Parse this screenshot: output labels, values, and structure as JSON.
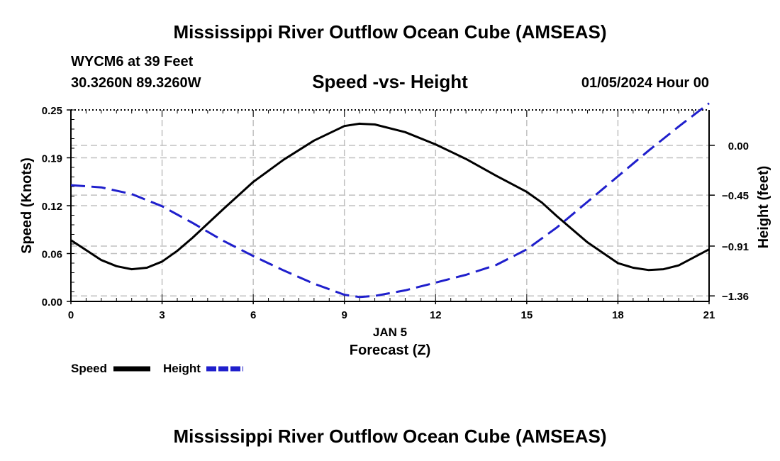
{
  "page": {
    "title_top": "Mississippi River Outflow Ocean Cube (AMSEAS)",
    "title_bottom": "Mississippi River Outflow Ocean Cube (AMSEAS)",
    "station_line": "WYCM6 at 39 Feet",
    "coords": "30.3260N  89.3260W",
    "date_label": "01/05/2024 Hour 00"
  },
  "chart_data": {
    "type": "line",
    "title": "Speed -vs- Height",
    "xlabel": "Forecast (Z)",
    "x_sublabel": "JAN 5",
    "ylabel": "Speed (Knots)",
    "ylabel_right": "Height (feet)",
    "xlim": [
      0,
      21
    ],
    "ylim": [
      0,
      0.25
    ],
    "ylim_right": [
      -1.41,
      0.32
    ],
    "x_ticks": [
      0,
      3,
      6,
      9,
      12,
      15,
      18,
      21
    ],
    "x_tick_labels": [
      "0",
      "3",
      "6",
      "9",
      "12",
      "15",
      "18",
      "21"
    ],
    "y_ticks": [
      0.0,
      0.0625,
      0.125,
      0.1875,
      0.25
    ],
    "y_tick_labels": [
      "0.00",
      "0.06",
      "0.12",
      "0.19",
      "0.25"
    ],
    "y_right_ticks": [
      0.0,
      -0.45,
      -0.91,
      -1.36
    ],
    "y_right_tick_labels": [
      "0.00",
      "−0.45",
      "−0.91",
      "−1.36"
    ],
    "grid": true,
    "legend": [
      "Speed",
      "Height"
    ],
    "series": [
      {
        "name": "Speed",
        "axis": "left",
        "color": "#000000",
        "dash": "solid",
        "x": [
          0,
          1,
          1.5,
          2,
          2.5,
          3,
          3.5,
          4,
          5,
          6,
          7,
          8,
          9,
          9.5,
          10,
          11,
          12,
          13,
          14,
          15,
          15.5,
          16,
          17,
          18,
          18.5,
          19,
          19.5,
          20,
          21
        ],
        "values": [
          0.08,
          0.054,
          0.046,
          0.042,
          0.044,
          0.052,
          0.066,
          0.083,
          0.12,
          0.156,
          0.185,
          0.21,
          0.229,
          0.232,
          0.231,
          0.221,
          0.205,
          0.186,
          0.164,
          0.143,
          0.129,
          0.111,
          0.077,
          0.05,
          0.044,
          0.041,
          0.042,
          0.047,
          0.068
        ]
      },
      {
        "name": "Height",
        "axis": "right",
        "color": "#1f1fcc",
        "dash": "dashed",
        "x": [
          0,
          1,
          2,
          3,
          4,
          5,
          6,
          7,
          8,
          9,
          9.5,
          10,
          11,
          12,
          13,
          14,
          15,
          16,
          17,
          18,
          19,
          20,
          21
        ],
        "values": [
          -0.36,
          -0.38,
          -0.44,
          -0.55,
          -0.7,
          -0.86,
          -1.0,
          -1.13,
          -1.25,
          -1.35,
          -1.37,
          -1.36,
          -1.31,
          -1.24,
          -1.17,
          -1.08,
          -0.94,
          -0.74,
          -0.51,
          -0.28,
          -0.05,
          0.17,
          0.38
        ]
      }
    ]
  }
}
